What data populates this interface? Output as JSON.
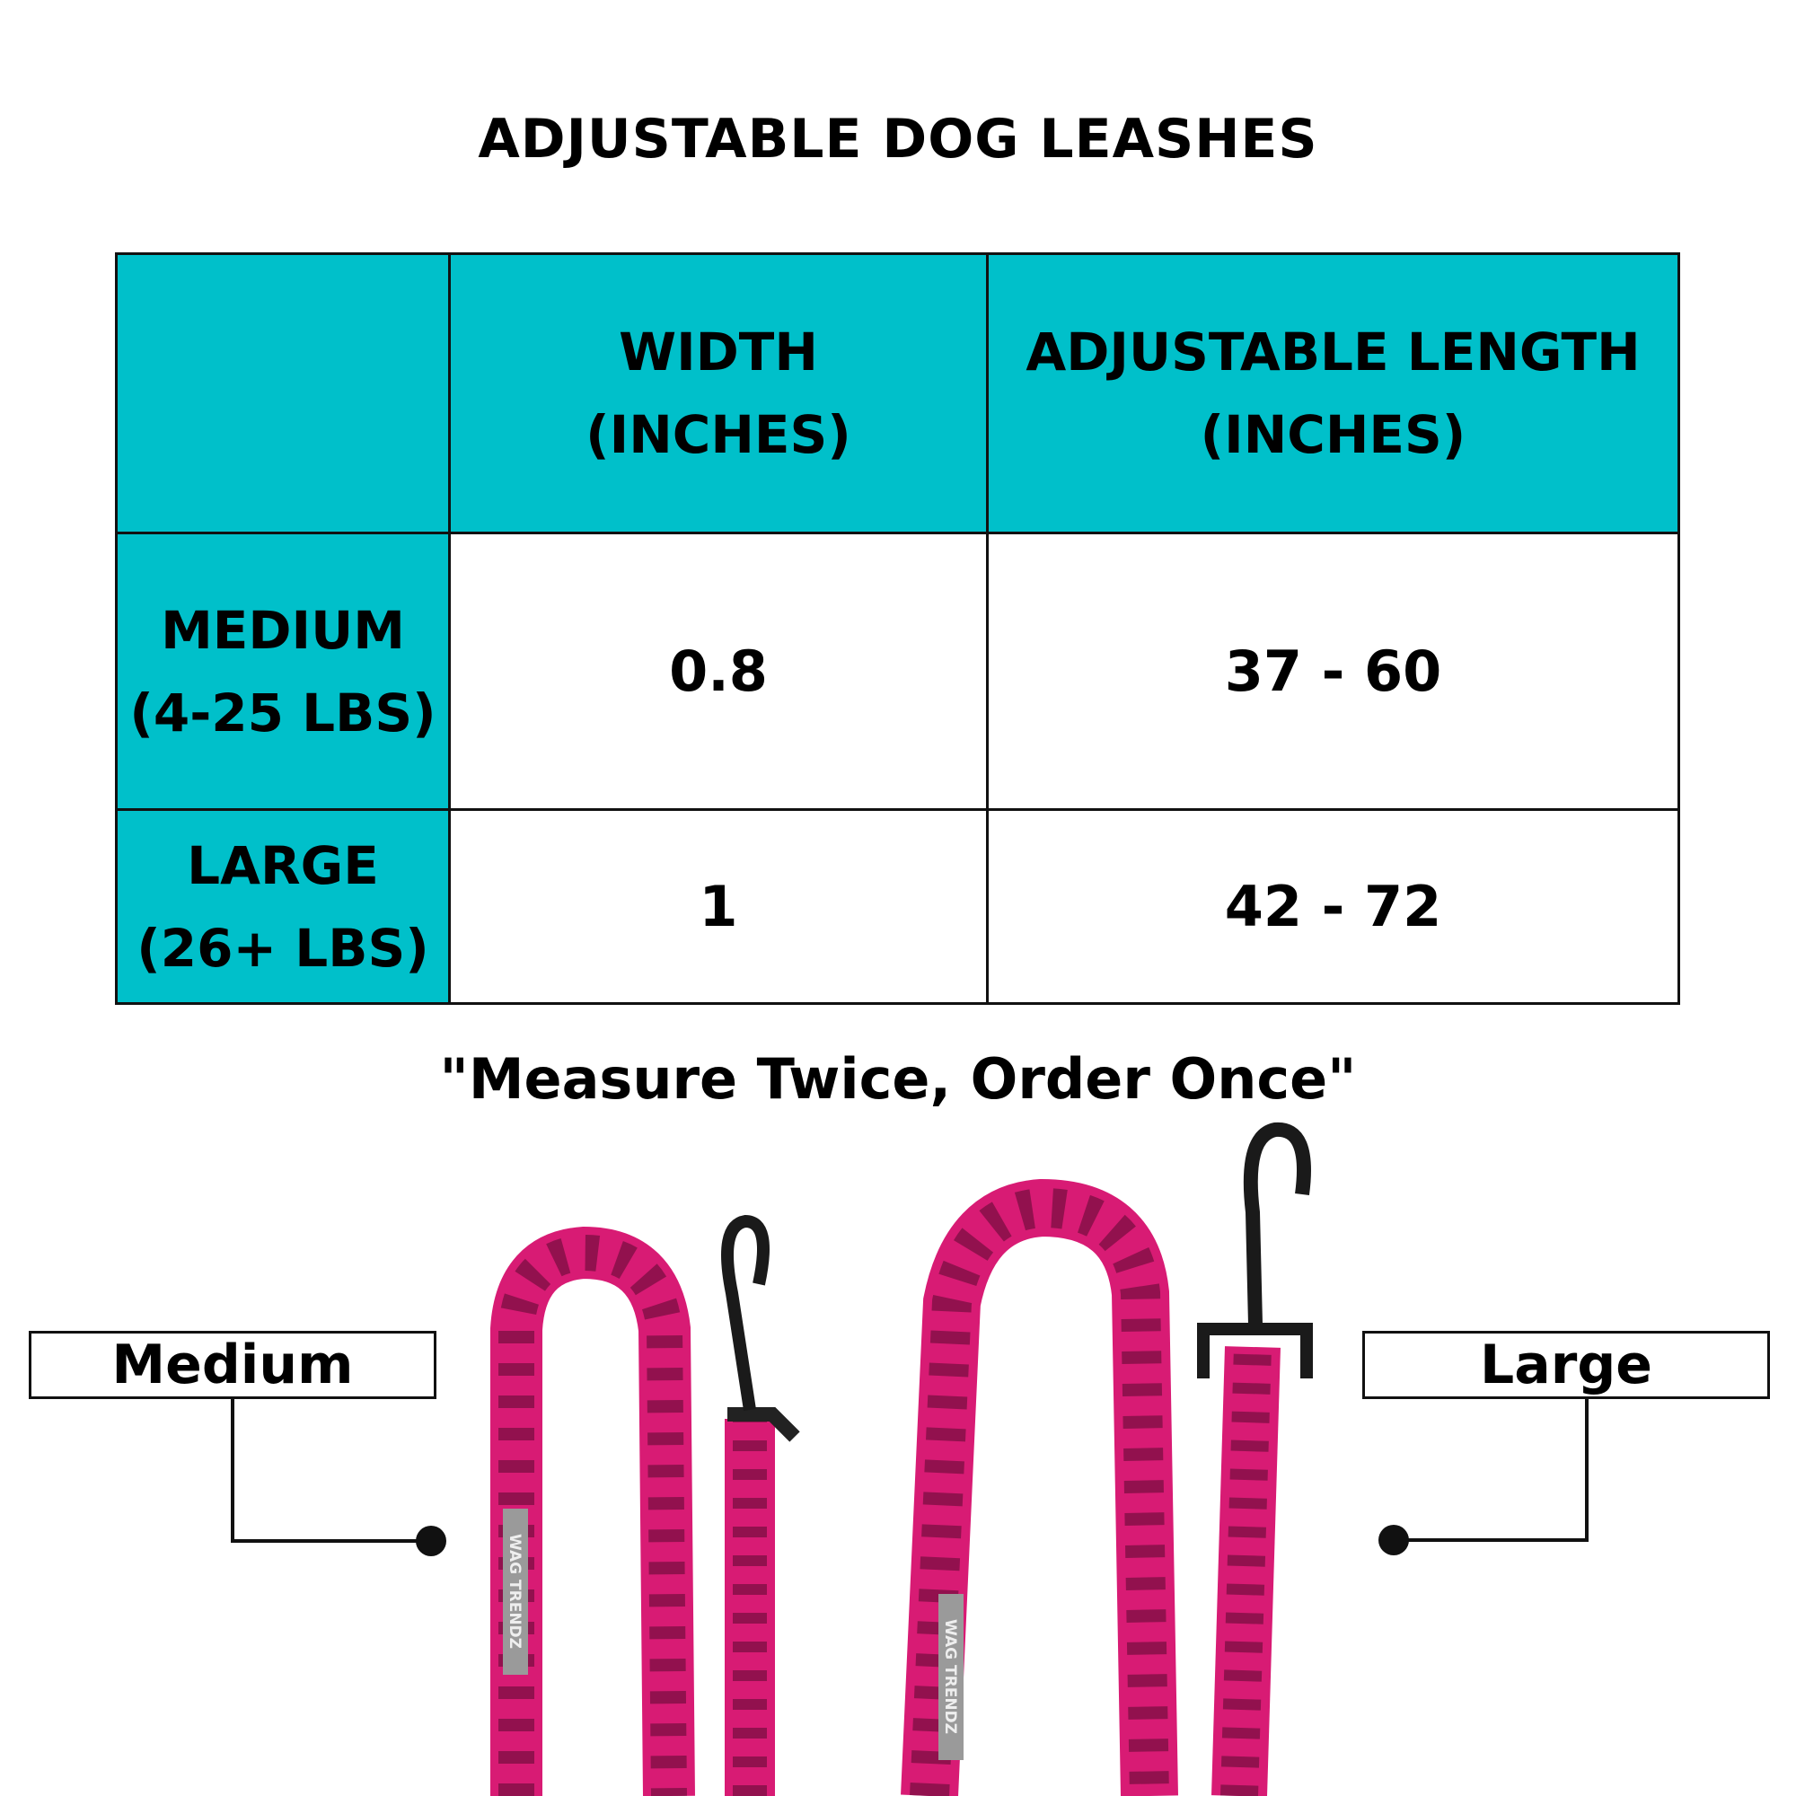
{
  "title": "ADJUSTABLE DOG LEASHES",
  "table": {
    "header_lines": {
      "width": [
        "WIDTH",
        "(INCHES)"
      ],
      "length": [
        "ADJUSTABLE LENGTH",
        "(INCHES)"
      ]
    },
    "rows": [
      {
        "size": "MEDIUM",
        "weight": "(4-25 LBS)",
        "width": "0.8",
        "length": "37 - 60"
      },
      {
        "size": "LARGE",
        "weight": "(26+ LBS)",
        "width": "1",
        "length": "42 - 72"
      }
    ]
  },
  "quote": "\"Measure Twice, Order Once\"",
  "callouts": {
    "medium": "Medium",
    "large": "Large"
  },
  "brand_tag": "WAG TRENDZ",
  "colors": {
    "header_teal": "#00c0ca",
    "leash_pink": "#d81b74"
  }
}
